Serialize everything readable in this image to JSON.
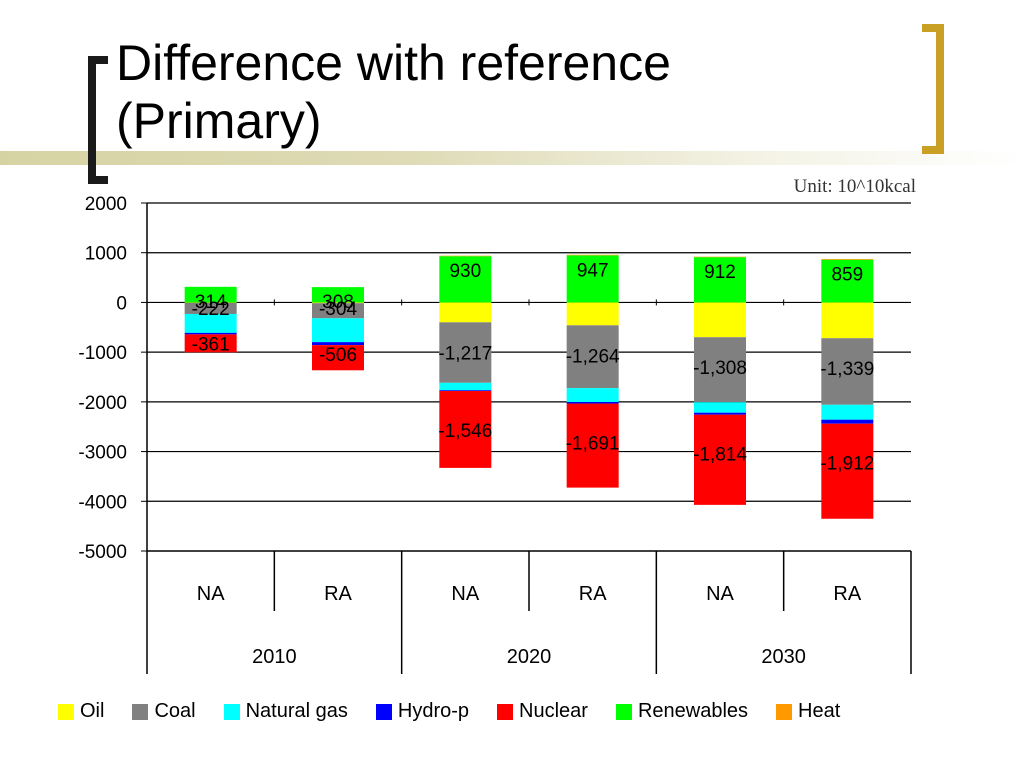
{
  "slide": {
    "title_line1": "Difference with reference",
    "title_line2": "(Primary)",
    "unit": "Unit: 10^10kcal"
  },
  "colors": {
    "oil": "#ffff00",
    "coal": "#808080",
    "natural_gas": "#00ffff",
    "hydro": "#0000ff",
    "nuclear": "#ff0000",
    "renewables": "#00ff00",
    "heat": "#ff9900"
  },
  "chart_data": {
    "type": "bar",
    "stacked": true,
    "title": "Difference with reference (Primary)",
    "unit": "10^10kcal",
    "ylim": [
      -5000,
      2000
    ],
    "yticks": [
      2000,
      1000,
      0,
      -1000,
      -2000,
      -3000,
      -4000,
      -5000
    ],
    "grid": true,
    "legend_position": "bottom",
    "categories": [
      "NA",
      "RA",
      "NA",
      "RA",
      "NA",
      "RA"
    ],
    "groups": [
      {
        "label": "2010",
        "span": 2
      },
      {
        "label": "2020",
        "span": 2
      },
      {
        "label": "2030",
        "span": 2
      }
    ],
    "series": [
      {
        "name": "Oil",
        "key": "oil",
        "values": [
          -10,
          -15,
          -400,
          -460,
          -700,
          -720
        ]
      },
      {
        "name": "Coal",
        "key": "coal",
        "values": [
          -222,
          -304,
          -1217,
          -1264,
          -1308,
          -1339
        ]
      },
      {
        "name": "Natural gas",
        "key": "natural_gas",
        "values": [
          -380,
          -480,
          -150,
          -280,
          -210,
          -300
        ]
      },
      {
        "name": "Hydro-p",
        "key": "hydro",
        "values": [
          -30,
          -60,
          -15,
          -30,
          -40,
          -80
        ]
      },
      {
        "name": "Nuclear",
        "key": "nuclear",
        "values": [
          -361,
          -506,
          -1546,
          -1691,
          -1814,
          -1912
        ]
      },
      {
        "name": "Renewables",
        "key": "renewables",
        "values": [
          314,
          308,
          930,
          947,
          912,
          859
        ]
      },
      {
        "name": "Heat",
        "key": "heat",
        "values": [
          0,
          0,
          10,
          12,
          8,
          15
        ]
      }
    ],
    "data_labels": [
      {
        "series": "Renewables",
        "values": [
          "314",
          "308",
          "930",
          "947",
          "912",
          "859"
        ]
      },
      {
        "series": "Coal",
        "values": [
          "-222",
          "-304",
          "-1,217",
          "-1,264",
          "-1,308",
          "-1,339"
        ]
      },
      {
        "series": "Nuclear",
        "values": [
          "-361",
          "-506",
          "-1,546",
          "-1,691",
          "-1,814",
          "-1,912"
        ]
      }
    ]
  }
}
